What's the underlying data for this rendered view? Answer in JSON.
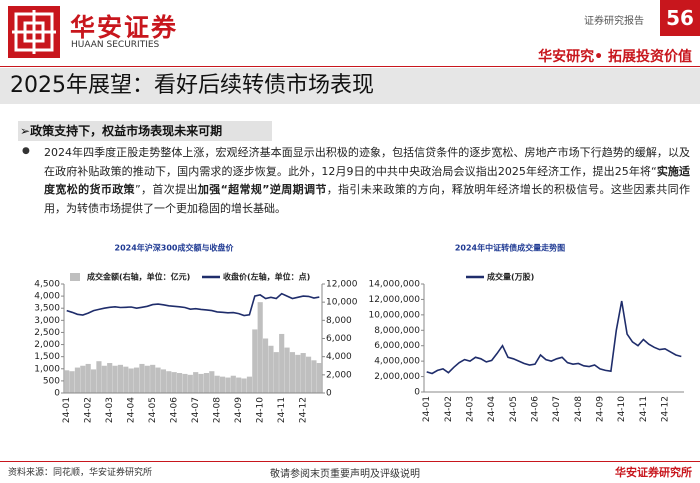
{
  "header": {
    "brand": "华安证券",
    "brand_en": "HUAAN SECURITIES",
    "report_type": "证券研究报告",
    "page_number": 56,
    "slogan": "华安研究• 拓展投资价值"
  },
  "title": "2025年展望：看好后续转债市场表现",
  "section": {
    "heading": "政策支持下，权益市场表现未来可期",
    "paragraph": [
      {
        "text": "2024年四季度正股走势整体上涨，宏观经济基本面显示出积极的迹象，包括信贷条件的逐步宽松、房地产市场下行趋势的缓解，以及在政府补贴政策的推动下，国内需求的逐步恢复。此外，12月9日的中共中央政治局会议指出2025年经济工作，提出25年将“",
        "bold": false
      },
      {
        "text": "实施适度宽松的货币政策",
        "bold": true
      },
      {
        "text": "”，首次提出",
        "bold": false
      },
      {
        "text": "加强“超常规”逆周期调节",
        "bold": true
      },
      {
        "text": "，指引未来政策的方向，释放明年经济增长的积极信号。这些因素共同作用，为转债市场提供了一个更加稳固的增长基础。",
        "bold": false
      }
    ]
  },
  "chart_data": [
    {
      "type": "combo",
      "title": "2024年沪深300成交额与收盘价",
      "categories": [
        "24-01",
        null,
        null,
        null,
        "24-02",
        null,
        null,
        null,
        "24-03",
        null,
        null,
        null,
        "24-04",
        null,
        null,
        null,
        "24-05",
        null,
        null,
        null,
        "24-06",
        null,
        null,
        null,
        "24-07",
        null,
        null,
        null,
        "24-08",
        null,
        null,
        null,
        "24-09",
        null,
        null,
        null,
        "24-10",
        null,
        null,
        null,
        "24-11",
        null,
        null,
        null,
        "24-12",
        null,
        null,
        null
      ],
      "series": [
        {
          "name": "成交金额(右轴，单位：亿元)",
          "type": "bar",
          "axis": "y2",
          "color": "#bfbfbf",
          "values": [
            2500,
            2400,
            2800,
            3000,
            3200,
            2600,
            3500,
            3000,
            3300,
            3000,
            3100,
            2900,
            2700,
            2800,
            3200,
            3000,
            3100,
            2800,
            2600,
            2400,
            2300,
            2200,
            2100,
            2000,
            2300,
            2100,
            2200,
            2400,
            1900,
            1800,
            1700,
            1900,
            1700,
            1600,
            1800,
            7000,
            10000,
            6000,
            5200,
            4500,
            6500,
            5000,
            4500,
            4200,
            4400,
            4000,
            3600,
            3300
          ]
        },
        {
          "name": "收盘价(左轴，单位：点)",
          "type": "line",
          "axis": "y",
          "color": "#1f2d6b",
          "values": [
            3400,
            3330,
            3250,
            3220,
            3300,
            3400,
            3450,
            3500,
            3540,
            3560,
            3530,
            3540,
            3550,
            3500,
            3540,
            3580,
            3650,
            3670,
            3640,
            3600,
            3580,
            3560,
            3530,
            3460,
            3480,
            3450,
            3430,
            3400,
            3350,
            3330,
            3310,
            3320,
            3280,
            3200,
            3230,
            4000,
            4050,
            3900,
            3950,
            3900,
            4100,
            4000,
            3900,
            3950,
            4000,
            3990,
            3920,
            3960
          ]
        }
      ],
      "ylim": [
        0,
        4500
      ],
      "yticks": [
        0,
        500,
        {
          "value": 1000,
          "label": "1,000"
        },
        {
          "value": 1500,
          "label": "1,500"
        },
        {
          "value": 2000,
          "label": "2,000"
        },
        {
          "value": 2500,
          "label": "2,500"
        },
        {
          "value": 3000,
          "label": "3,000"
        },
        {
          "value": 3500,
          "label": "3,500"
        },
        {
          "value": 4000,
          "label": "4,000"
        },
        {
          "value": 4500,
          "label": "4,500"
        }
      ],
      "y2lim": [
        0,
        12000
      ],
      "y2ticks": [
        0,
        {
          "value": 2000,
          "label": "2,000"
        },
        {
          "value": 4000,
          "label": "4,000"
        },
        {
          "value": 6000,
          "label": "6,000"
        },
        {
          "value": 8000,
          "label": "8,000"
        },
        {
          "value": 10000,
          "label": "10,000"
        },
        {
          "value": 12000,
          "label": "12,000"
        }
      ]
    },
    {
      "type": "line",
      "title": "2024年中证转债成交量走势图",
      "categories": [
        "24-01",
        null,
        null,
        null,
        "24-02",
        null,
        null,
        null,
        "24-03",
        null,
        null,
        null,
        "24-04",
        null,
        null,
        null,
        "24-05",
        null,
        null,
        null,
        "24-06",
        null,
        null,
        null,
        "24-07",
        null,
        null,
        null,
        "24-08",
        null,
        null,
        null,
        "24-09",
        null,
        null,
        null,
        "24-10",
        null,
        null,
        null,
        "24-11",
        null,
        null,
        null,
        "24-12",
        null,
        null,
        null
      ],
      "series": [
        {
          "name": "成交量(万股)",
          "type": "line",
          "axis": "y",
          "color": "#1f2d6b",
          "values": [
            2600000,
            2400000,
            2800000,
            3000000,
            2500000,
            3200000,
            3800000,
            4200000,
            4000000,
            4500000,
            4300000,
            3900000,
            4100000,
            5000000,
            6000000,
            4500000,
            4300000,
            4000000,
            3700000,
            3500000,
            3600000,
            4800000,
            4200000,
            4000000,
            4300000,
            4500000,
            3800000,
            3600000,
            3700000,
            3400000,
            3300000,
            3500000,
            3000000,
            2800000,
            2700000,
            8000000,
            11800000,
            7500000,
            6500000,
            6000000,
            6800000,
            6200000,
            5800000,
            5500000,
            5600000,
            5200000,
            4800000,
            4600000
          ]
        }
      ],
      "ylim": [
        0,
        14000000
      ],
      "yticks": [
        0,
        {
          "value": 2000000,
          "label": "2,000,000"
        },
        {
          "value": 4000000,
          "label": "4,000,000"
        },
        {
          "value": 6000000,
          "label": "6,000,000"
        },
        {
          "value": 8000000,
          "label": "8,000,000"
        },
        {
          "value": 10000000,
          "label": "10,000,000"
        },
        {
          "value": 12000000,
          "label": "12,000,000"
        },
        {
          "value": 14000000,
          "label": "14,000,000"
        }
      ]
    }
  ],
  "footer": {
    "source": "资料来源：同花顺，华安证券研究所",
    "disclaimer": "敬请参阅末页重要声明及评级说明",
    "org": "华安证券研究所"
  }
}
